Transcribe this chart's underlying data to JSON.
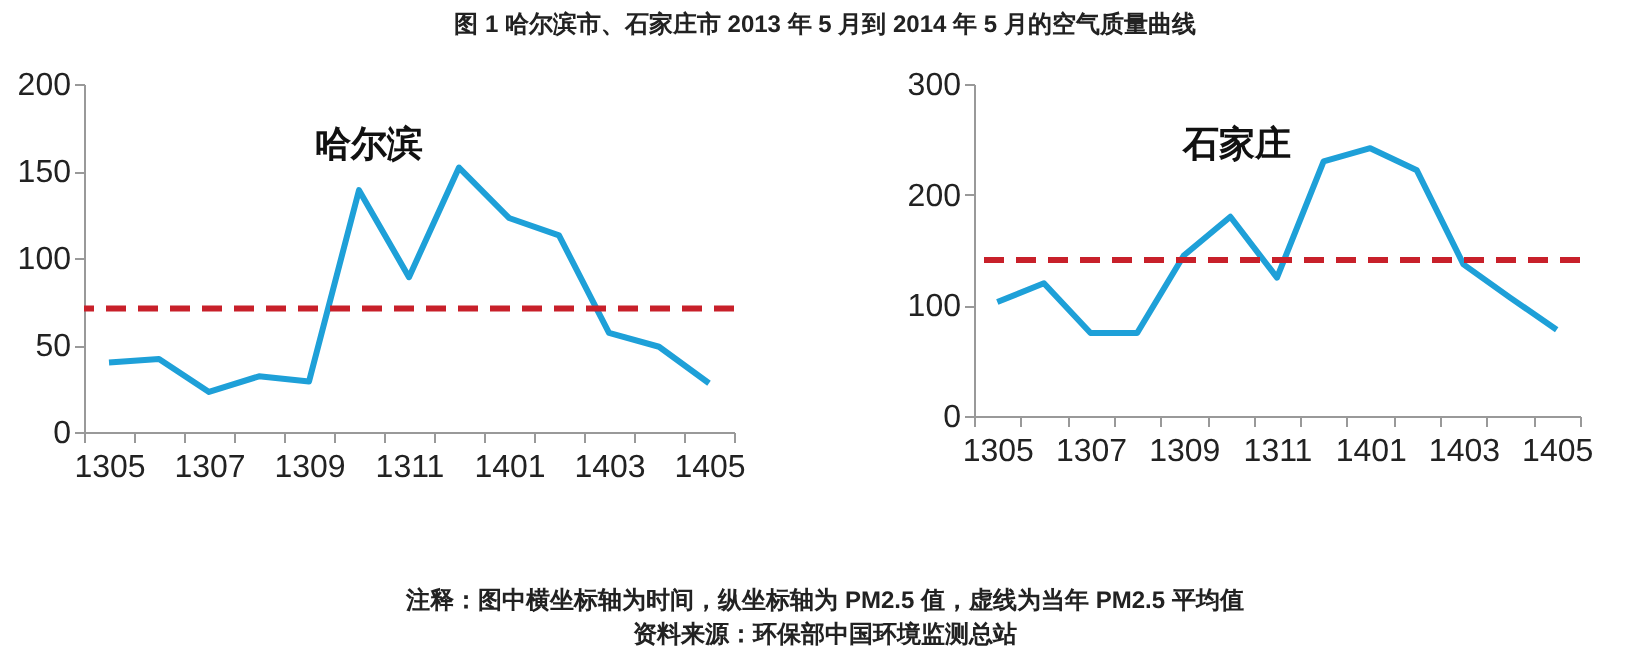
{
  "chart_data": [
    {
      "type": "line",
      "title": "哈尔滨",
      "categories": [
        "1305",
        null,
        "1307",
        null,
        "1309",
        null,
        "1311",
        null,
        "1401",
        null,
        "1403",
        null,
        "1405"
      ],
      "series": [
        {
          "color": "#1ea0d8",
          "values": [
            40,
            42,
            23,
            32,
            29,
            139,
            89,
            152,
            123,
            113,
            57,
            49,
            28
          ]
        }
      ],
      "ylim": [
        0,
        200
      ],
      "yticks": [
        0,
        50,
        100,
        150,
        200
      ],
      "grid": false,
      "marker": "none",
      "line_style": "solid",
      "ref_lines": [
        {
          "axis": "y",
          "value": 71,
          "color": "#c8202a",
          "line_style": "dashed"
        }
      ],
      "annotations": [
        "图 1 哈尔滨市、石家庄市 2013 年 5 月到 2014 年 5 月的空气质量曲线",
        "注释：图中横坐标轴为时间，纵坐标轴为 PM2.5 值，虚线为当年 PM2.5 平均值",
        "资料来源：环保部中国环境监测总站"
      ]
    },
    {
      "type": "line",
      "title": "石家庄",
      "categories": [
        "1305",
        null,
        "1307",
        null,
        "1309",
        null,
        "1311",
        null,
        "1401",
        null,
        "1403",
        null,
        "1405"
      ],
      "series": [
        {
          "color": "#1ea0d8",
          "values": [
            103,
            120,
            75,
            75,
            145,
            180,
            125,
            230,
            242,
            222,
            137,
            107,
            78
          ]
        }
      ],
      "ylim": [
        0,
        300
      ],
      "yticks": [
        0,
        100,
        200,
        300
      ],
      "grid": false,
      "marker": "none",
      "line_style": "solid",
      "ref_lines": [
        {
          "axis": "y",
          "value": 141,
          "color": "#c8202a",
          "line_style": "dashed"
        }
      ]
    }
  ]
}
